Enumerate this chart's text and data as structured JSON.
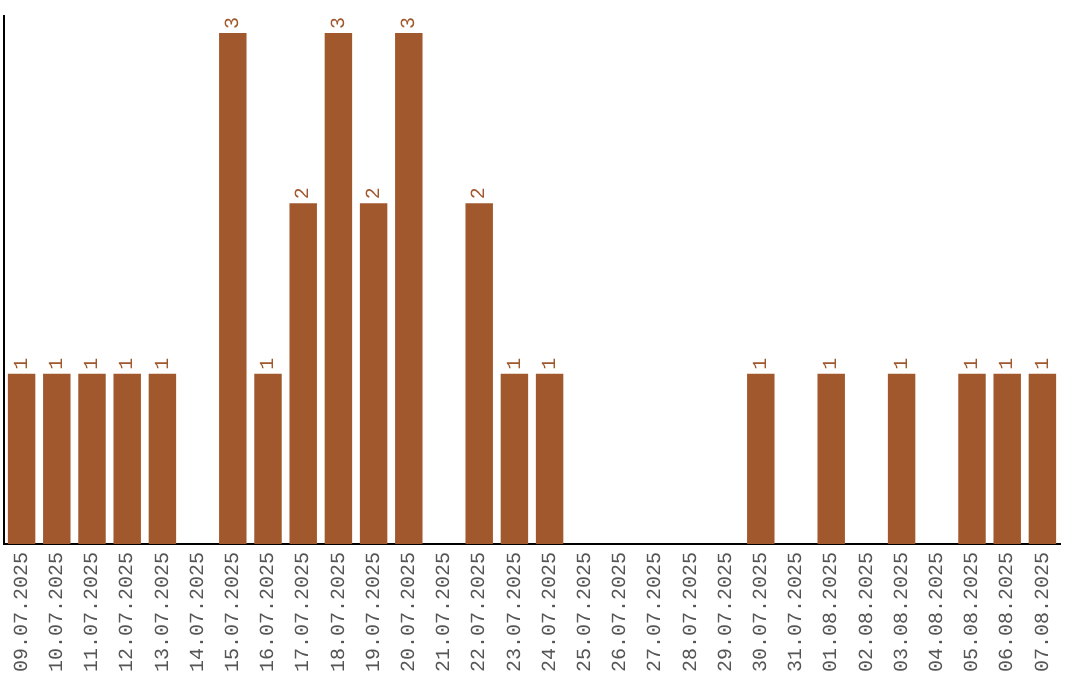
{
  "chart_data": {
    "type": "bar",
    "categories": [
      "09.07.2025",
      "10.07.2025",
      "11.07.2025",
      "12.07.2025",
      "13.07.2025",
      "14.07.2025",
      "15.07.2025",
      "16.07.2025",
      "17.07.2025",
      "18.07.2025",
      "19.07.2025",
      "20.07.2025",
      "21.07.2025",
      "22.07.2025",
      "23.07.2025",
      "24.07.2025",
      "25.07.2025",
      "26.07.2025",
      "27.07.2025",
      "28.07.2025",
      "29.07.2025",
      "30.07.2025",
      "31.07.2025",
      "01.08.2025",
      "02.08.2025",
      "03.08.2025",
      "04.08.2025",
      "05.08.2025",
      "06.08.2025",
      "07.08.2025"
    ],
    "values": [
      1,
      1,
      1,
      1,
      1,
      0,
      3,
      1,
      2,
      3,
      2,
      3,
      0,
      2,
      1,
      1,
      0,
      0,
      0,
      0,
      0,
      1,
      0,
      1,
      0,
      1,
      0,
      1,
      1,
      1
    ],
    "color": "#a0582c",
    "ylim": [
      0,
      3.1
    ],
    "tick_labels": "x",
    "value_labels": [
      "1",
      "1",
      "1",
      "1",
      "1",
      null,
      "3",
      "1",
      "2",
      "3",
      "2",
      "3",
      null,
      "2",
      "1",
      "1",
      null,
      null,
      null,
      null,
      null,
      "1",
      null,
      "1",
      null,
      "1",
      null,
      "1",
      "1",
      "1"
    ],
    "grid": false,
    "legend": false
  }
}
